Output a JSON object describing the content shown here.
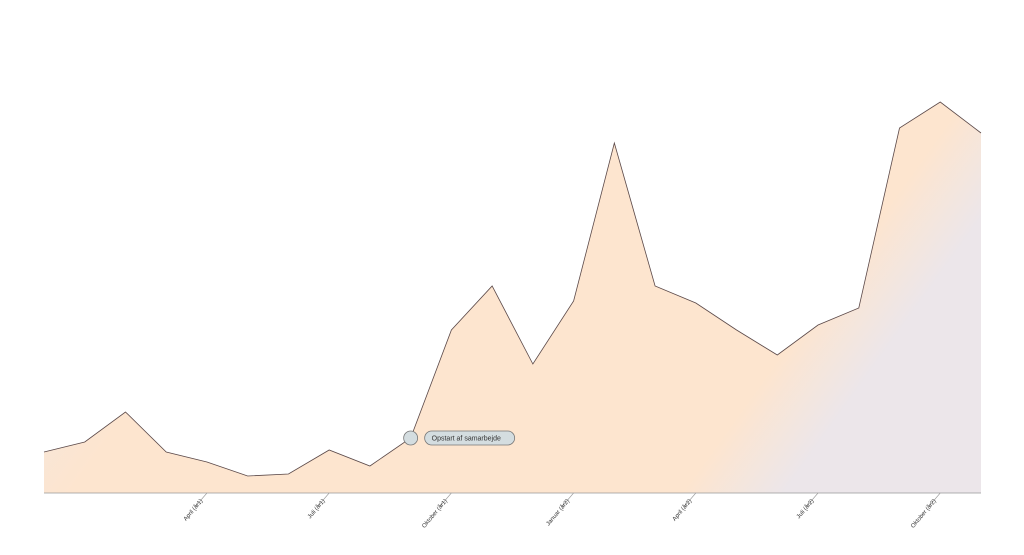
{
  "chart_data": {
    "type": "area",
    "categories": [
      null,
      null,
      null,
      null,
      "April (år1)",
      null,
      null,
      "Juli (år1)",
      null,
      null,
      "Oktober (år1)",
      null,
      null,
      "Januar (år2)",
      null,
      null,
      "April (år2)",
      null,
      null,
      "Juli (år2)",
      null,
      null,
      "Oktober (år2)",
      null
    ],
    "values": [
      41,
      51,
      81,
      41,
      31,
      17,
      19,
      43,
      27,
      55,
      163,
      207,
      129,
      192,
      350,
      207,
      190,
      163,
      138,
      168,
      185,
      365,
      391,
      360
    ],
    "ylim": [
      0,
      403
    ],
    "color": "#fde5cf",
    "line_color": "#5a4848",
    "annotations": [
      {
        "x": 9,
        "label": "Opstart af samarbejde"
      }
    ]
  }
}
